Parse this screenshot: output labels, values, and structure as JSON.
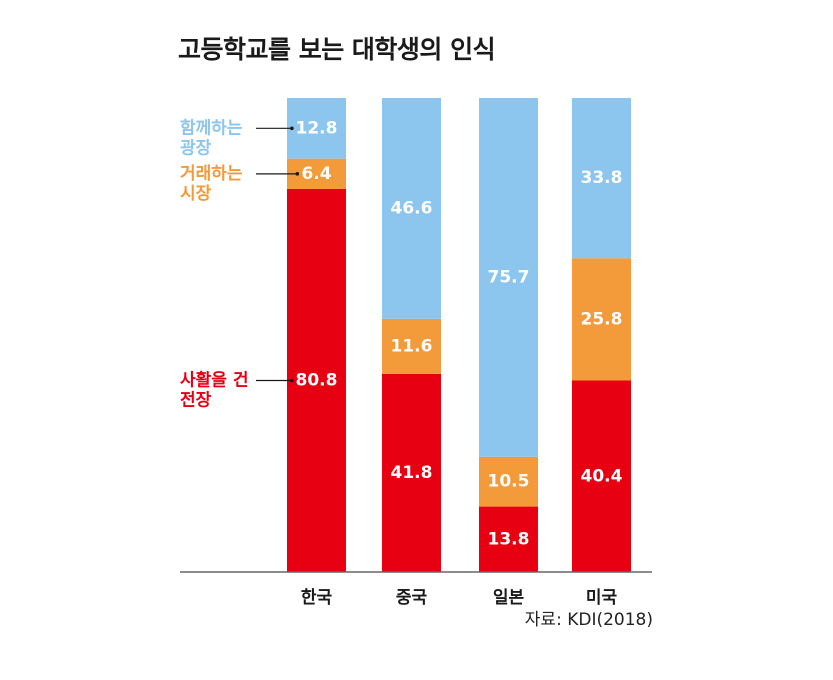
{
  "chart_data": {
    "type": "bar",
    "stacked": true,
    "title": "고등학교를 보는 대학생의 인식",
    "categories": [
      "한국",
      "중국",
      "일본",
      "미국"
    ],
    "series": [
      {
        "name_lines": [
          "사활을 건",
          "전장"
        ],
        "color": "#e60012",
        "values": [
          80.8,
          41.8,
          13.8,
          40.4
        ]
      },
      {
        "name_lines": [
          "거래하는",
          "시장"
        ],
        "color": "#f39a3a",
        "values": [
          6.4,
          11.6,
          10.5,
          25.8
        ]
      },
      {
        "name_lines": [
          "함께하는",
          "광장"
        ],
        "color": "#8cc6ee",
        "values": [
          12.8,
          46.6,
          75.7,
          33.8
        ]
      }
    ],
    "value_labels": [
      [
        "80.8",
        "41.8",
        "13.8",
        "40.4"
      ],
      [
        "6.4",
        "11.6",
        "10.5",
        "25.8"
      ],
      [
        "12.8",
        "46.6",
        "75.7",
        "33.8"
      ]
    ],
    "ylim": [
      0,
      100
    ],
    "legend_position": "left",
    "label_color_text": "#ffffff",
    "source": "자료: KDI(2018)"
  }
}
